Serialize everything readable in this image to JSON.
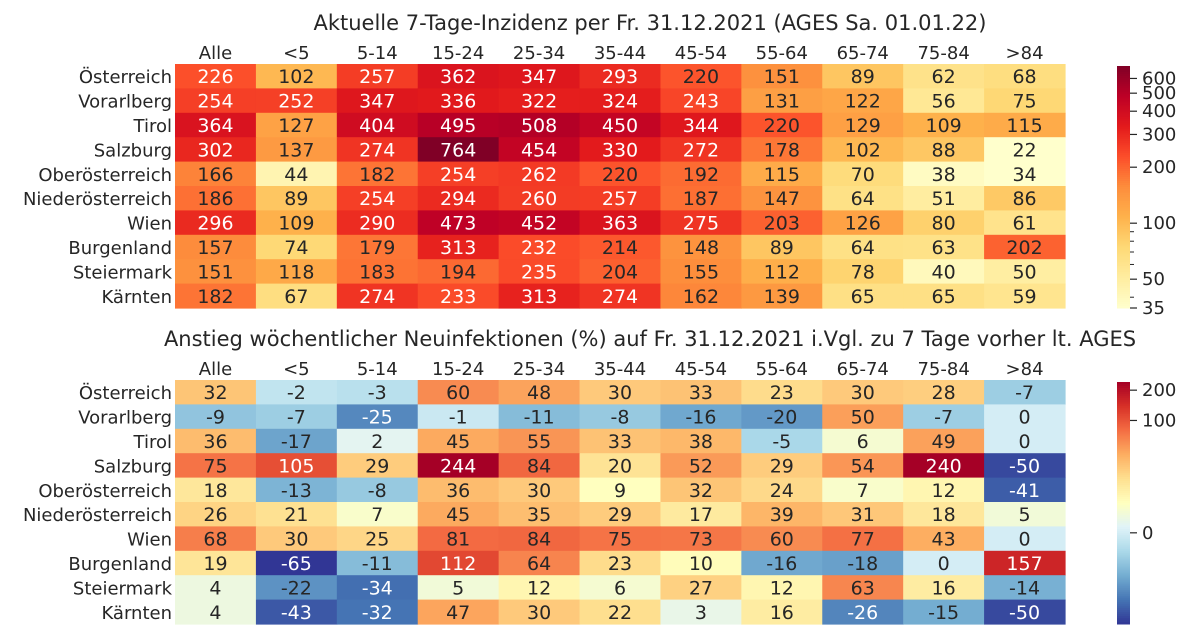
{
  "chart_data": [
    {
      "type": "heatmap",
      "title": "Aktuelle 7-Tage-Inzidenz per Fr. 31.12.2021 (AGES Sa. 01.01.22)",
      "columns": [
        "Alle",
        "<5",
        "5-14",
        "15-24",
        "25-34",
        "35-44",
        "45-54",
        "55-64",
        "65-74",
        "75-84",
        ">84"
      ],
      "rows": [
        "Österreich",
        "Vorarlberg",
        "Tirol",
        "Salzburg",
        "Oberösterreich",
        "Niederösterreich",
        "Wien",
        "Burgenland",
        "Steiermark",
        "Kärnten"
      ],
      "values": [
        [
          226,
          102,
          257,
          362,
          347,
          293,
          220,
          151,
          89,
          62,
          68
        ],
        [
          254,
          252,
          347,
          336,
          322,
          324,
          243,
          131,
          122,
          56,
          75
        ],
        [
          364,
          127,
          404,
          495,
          508,
          450,
          344,
          220,
          129,
          109,
          115
        ],
        [
          302,
          137,
          274,
          764,
          454,
          330,
          272,
          178,
          102,
          88,
          22
        ],
        [
          166,
          44,
          182,
          254,
          262,
          220,
          192,
          115,
          70,
          38,
          34
        ],
        [
          186,
          89,
          254,
          294,
          260,
          257,
          187,
          147,
          64,
          51,
          86
        ],
        [
          296,
          109,
          290,
          473,
          452,
          363,
          275,
          203,
          126,
          80,
          61
        ],
        [
          157,
          74,
          179,
          313,
          232,
          214,
          148,
          89,
          64,
          63,
          202
        ],
        [
          151,
          118,
          183,
          194,
          235,
          204,
          155,
          112,
          78,
          40,
          50
        ],
        [
          182,
          67,
          274,
          233,
          313,
          274,
          162,
          139,
          65,
          65,
          59
        ]
      ],
      "colorbar": {
        "scale": "log",
        "range": [
          35,
          700
        ],
        "ticks": [
          35,
          50,
          100,
          200,
          300,
          400,
          500,
          600
        ],
        "colormap": "YlOrRd"
      }
    },
    {
      "type": "heatmap",
      "title": "Anstieg wöchentlicher Neuinfektionen (%) auf Fr. 31.12.2021 i.Vgl. zu 7 Tage vorher lt. AGES",
      "columns": [
        "Alle",
        "<5",
        "5-14",
        "15-24",
        "25-34",
        "35-44",
        "45-54",
        "55-64",
        "65-74",
        "75-84",
        ">84"
      ],
      "rows": [
        "Österreich",
        "Vorarlberg",
        "Tirol",
        "Salzburg",
        "Oberösterreich",
        "Niederösterreich",
        "Wien",
        "Burgenland",
        "Steiermark",
        "Kärnten"
      ],
      "values": [
        [
          32,
          -2,
          -3,
          60,
          48,
          30,
          33,
          23,
          30,
          28,
          -7
        ],
        [
          -9,
          -7,
          -25,
          -1,
          -11,
          -8,
          -16,
          -20,
          50,
          -7,
          0
        ],
        [
          36,
          -17,
          2,
          45,
          55,
          33,
          38,
          -5,
          6,
          49,
          0
        ],
        [
          75,
          105,
          29,
          244,
          84,
          20,
          52,
          29,
          54,
          240,
          -50
        ],
        [
          18,
          -13,
          -8,
          36,
          30,
          9,
          32,
          24,
          7,
          12,
          -41
        ],
        [
          26,
          21,
          7,
          45,
          35,
          29,
          17,
          39,
          31,
          18,
          5
        ],
        [
          68,
          30,
          25,
          81,
          84,
          75,
          73,
          60,
          77,
          43,
          0
        ],
        [
          19,
          -65,
          -11,
          112,
          64,
          23,
          10,
          -16,
          -18,
          0,
          157
        ],
        [
          4,
          -22,
          -34,
          5,
          12,
          6,
          27,
          12,
          63,
          16,
          -14
        ],
        [
          4,
          -43,
          -32,
          47,
          30,
          22,
          3,
          16,
          -26,
          -15,
          -50
        ]
      ],
      "colorbar": {
        "scale": "symlog",
        "range": [
          -60,
          240
        ],
        "ticks": [
          0,
          100,
          200
        ],
        "colormap": "RdYlBu_r"
      }
    }
  ]
}
